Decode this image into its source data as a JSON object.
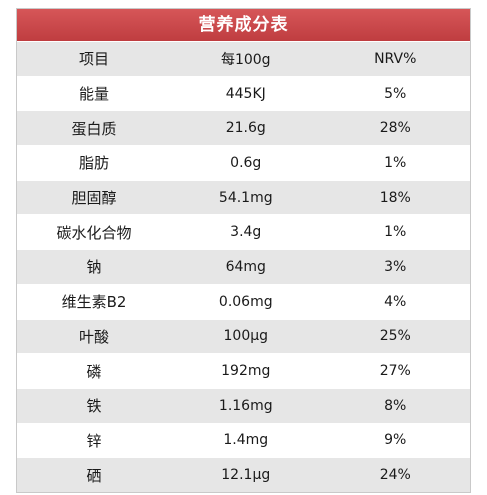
{
  "title": "营养成分表",
  "header": {
    "item": "项目",
    "amount": "每100g",
    "nrv": "NRV%"
  },
  "rows": [
    {
      "name": "能量",
      "amount": "445KJ",
      "nrv": "5%"
    },
    {
      "name": "蛋白质",
      "amount": "21.6g",
      "nrv": "28%"
    },
    {
      "name": "脂肪",
      "amount": "0.6g",
      "nrv": "1%"
    },
    {
      "name": "胆固醇",
      "amount": "54.1mg",
      "nrv": "18%"
    },
    {
      "name": "碳水化合物",
      "amount": "3.4g",
      "nrv": "1%"
    },
    {
      "name": "钠",
      "amount": "64mg",
      "nrv": "3%"
    },
    {
      "name": "维生素B2",
      "amount": "0.06mg",
      "nrv": "4%"
    },
    {
      "name": "叶酸",
      "amount": "100μg",
      "nrv": "25%"
    },
    {
      "name": "磷",
      "amount": "192mg",
      "nrv": "27%"
    },
    {
      "name": "铁",
      "amount": "1.16mg",
      "nrv": "8%"
    },
    {
      "name": "锌",
      "amount": "1.4mg",
      "nrv": "9%"
    },
    {
      "name": "硒",
      "amount": "12.1μg",
      "nrv": "24%"
    }
  ]
}
